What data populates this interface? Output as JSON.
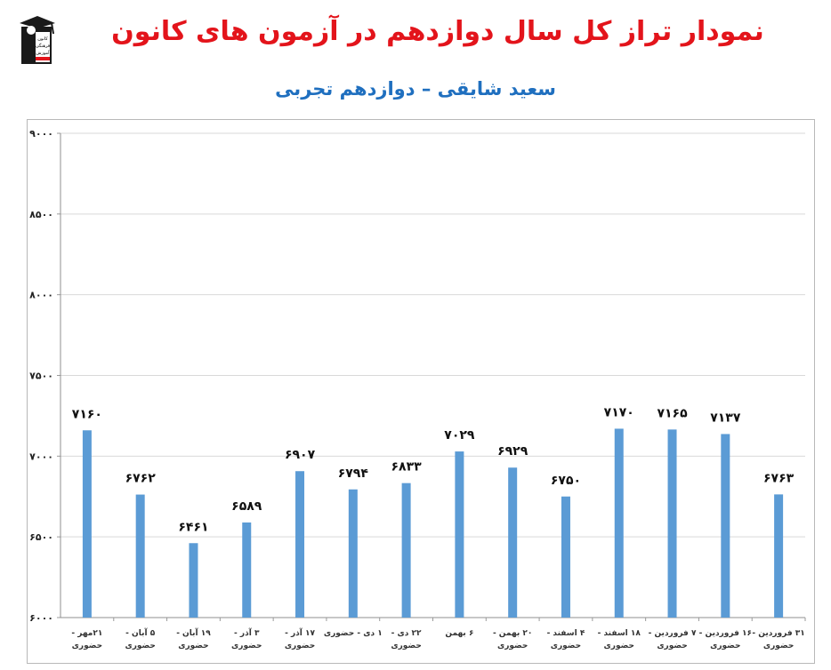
{
  "header": {
    "title": "نمودار تراز کل سال دوازدهم در آزمون های کانون",
    "subtitle": "سعید شایقی – دوازدهم تجربی",
    "logo_lines": [
      "کانون",
      "فرهنگی",
      "آموزش"
    ]
  },
  "colors": {
    "title": "#e3141b",
    "subtitle": "#1f6fbf",
    "bar": "#5b9bd5",
    "grid": "#d9d9d9"
  },
  "chart_data": {
    "type": "bar",
    "title": "نمودار تراز کل سال دوازدهم در آزمون های کانون",
    "subtitle": "سعید شایقی – دوازدهم تجربی",
    "xlabel": "",
    "ylabel": "",
    "ylim": [
      6000,
      9000
    ],
    "yticks": [
      6000,
      6500,
      7000,
      7500,
      8000,
      8500,
      9000
    ],
    "ytick_labels": [
      "۶۰۰۰",
      "۶۵۰۰",
      "۷۰۰۰",
      "۷۵۰۰",
      "۸۰۰۰",
      "۸۵۰۰",
      "۹۰۰۰"
    ],
    "grid": true,
    "legend": "none",
    "categories": [
      [
        "۲۱مهر -",
        "حضوری"
      ],
      [
        "۵ آبان -",
        "حضوری"
      ],
      [
        "۱۹ آبان -",
        "حضوری"
      ],
      [
        "۳ آذر -",
        "حضوری"
      ],
      [
        "۱۷ آذر -",
        "حضوری"
      ],
      [
        "۱ دی - حضوری"
      ],
      [
        "۲۲ دی -",
        "حضوری"
      ],
      [
        "۶ بهمن"
      ],
      [
        "۲۰ بهمن -",
        "حضوری"
      ],
      [
        "۴ اسفند -",
        "حضوری"
      ],
      [
        "۱۸ اسفند -",
        "حضوری"
      ],
      [
        "۷ فروردین -",
        "حضوری"
      ],
      [
        "۱۶ فروردین -",
        "حضوری"
      ],
      [
        "۳۱ فروردین -",
        "حضوری"
      ]
    ],
    "values": [
      7160,
      6762,
      6461,
      6589,
      6907,
      6794,
      6833,
      7029,
      6929,
      6750,
      7170,
      7165,
      7137,
      6763
    ],
    "value_labels": [
      "۷۱۶۰",
      "۶۷۶۲",
      "۶۴۶۱",
      "۶۵۸۹",
      "۶۹۰۷",
      "۶۷۹۴",
      "۶۸۳۳",
      "۷۰۲۹",
      "۶۹۲۹",
      "۶۷۵۰",
      "۷۱۷۰",
      "۷۱۶۵",
      "۷۱۳۷",
      "۶۷۶۳"
    ]
  }
}
